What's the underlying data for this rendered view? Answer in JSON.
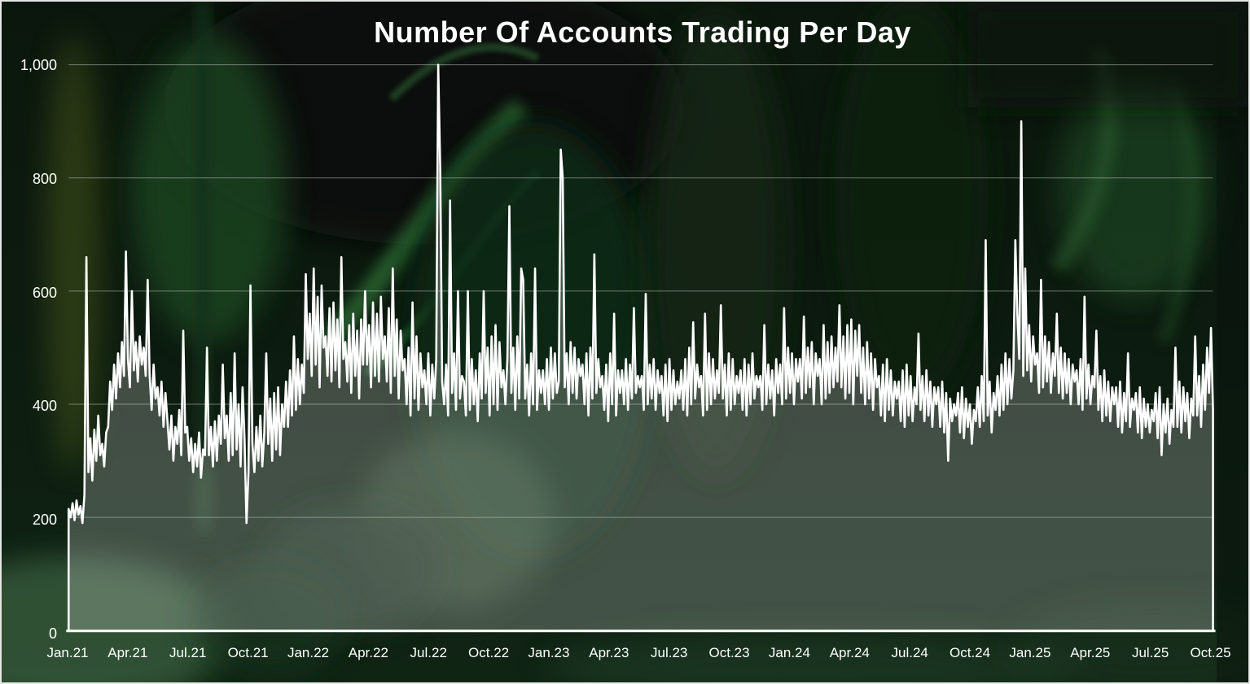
{
  "colors": {
    "background_base": "#0b170d",
    "line": "#ffffff",
    "area_fill": "#ffffff",
    "area_fill_opacity": 0.22,
    "gridline": "#c9cfc9",
    "gridline_opacity": 0.5,
    "axis_line": "#ffffff",
    "label_text": "#ffffff",
    "outer_border": "#e4e8e4"
  },
  "chart_data": {
    "type": "area",
    "title": "Number Of Accounts Trading Per Day",
    "xlabel": "",
    "ylabel": "",
    "legend": "none",
    "grid": "horizontal",
    "ylim": [
      0,
      1000
    ],
    "y_ticks": [
      0,
      200,
      400,
      600,
      800,
      1000
    ],
    "y_tick_labels": [
      "0",
      "200",
      "400",
      "600",
      "800",
      "1,000"
    ],
    "x_tick_labels": [
      "Jan.21",
      "Apr.21",
      "Jul.21",
      "Oct.21",
      "Jan.22",
      "Apr.22",
      "Jul.22",
      "Oct.22",
      "Jan.23",
      "Apr.23",
      "Jul.23",
      "Oct.23",
      "Jan.24",
      "Apr.24",
      "Jul.24",
      "Oct.24",
      "Jan.25",
      "Apr.25",
      "Jul.25",
      "Oct.25"
    ],
    "series_name": "accounts-trading-per-day",
    "sampling": "approx. every 3 days, Jan 2021 - Oct 2025",
    "values": [
      215,
      200,
      225,
      195,
      230,
      205,
      220,
      190,
      240,
      660,
      280,
      340,
      265,
      355,
      300,
      380,
      310,
      330,
      290,
      350,
      360,
      440,
      390,
      470,
      410,
      490,
      430,
      510,
      450,
      670,
      480,
      430,
      600,
      460,
      510,
      440,
      520,
      470,
      500,
      450,
      620,
      450,
      390,
      470,
      410,
      430,
      380,
      440,
      360,
      420,
      370,
      320,
      380,
      300,
      360,
      330,
      390,
      310,
      530,
      350,
      360,
      300,
      340,
      280,
      330,
      290,
      350,
      270,
      320,
      310,
      500,
      310,
      360,
      290,
      370,
      300,
      380,
      330,
      470,
      340,
      380,
      300,
      420,
      310,
      490,
      320,
      400,
      290,
      430,
      340,
      190,
      280,
      610,
      330,
      280,
      360,
      300,
      380,
      290,
      350,
      490,
      330,
      410,
      300,
      420,
      320,
      430,
      310,
      400,
      360,
      440,
      360,
      460,
      380,
      520,
      390,
      480,
      400,
      470,
      420,
      630,
      480,
      560,
      450,
      640,
      470,
      590,
      430,
      610,
      500,
      520,
      450,
      570,
      440,
      580,
      460,
      550,
      430,
      660,
      480,
      510,
      440,
      540,
      420,
      560,
      450,
      530,
      410,
      550,
      470,
      600,
      470,
      540,
      430,
      580,
      450,
      560,
      440,
      590,
      480,
      520,
      440,
      570,
      420,
      640,
      450,
      550,
      410,
      530,
      460,
      480,
      400,
      500,
      380,
      580,
      410,
      520,
      390,
      490,
      430,
      460,
      400,
      490,
      380,
      470,
      410,
      480,
      1000,
      820,
      440,
      400,
      470,
      380,
      760,
      420,
      490,
      390,
      600,
      410,
      450,
      440,
      380,
      600,
      390,
      480,
      400,
      460,
      370,
      490,
      410,
      600,
      420,
      500,
      380,
      520,
      400,
      540,
      390,
      510,
      430,
      460,
      400,
      480,
      750,
      420,
      500,
      390,
      520,
      410,
      640,
      620,
      410,
      470,
      380,
      490,
      400,
      640,
      390,
      460,
      420,
      460,
      400,
      480,
      390,
      500,
      410,
      490,
      420,
      440,
      850,
      800,
      430,
      490,
      400,
      510,
      420,
      500,
      410,
      480,
      450,
      470,
      400,
      490,
      380,
      500,
      410,
      665,
      420,
      480,
      430,
      450,
      390,
      470,
      370,
      490,
      400,
      560,
      380,
      460,
      420,
      460,
      400,
      480,
      390,
      470,
      410,
      570,
      420,
      450,
      430,
      450,
      390,
      595,
      400,
      470,
      410,
      480,
      390,
      460,
      420,
      450,
      380,
      470,
      370,
      480,
      390,
      460,
      400,
      440,
      410,
      460,
      390,
      480,
      380,
      500,
      400,
      545,
      410,
      470,
      430,
      450,
      380,
      560,
      390,
      490,
      400,
      480,
      410,
      460,
      420,
      575,
      410,
      470,
      380,
      490,
      390,
      480,
      400,
      450,
      420,
      460,
      390,
      480,
      380,
      470,
      400,
      490,
      410,
      450,
      430,
      450,
      390,
      540,
      400,
      470,
      410,
      460,
      380,
      480,
      420,
      470,
      400,
      570,
      410,
      500,
      420,
      490,
      400,
      480,
      440,
      480,
      410,
      555,
      420,
      500,
      430,
      510,
      400,
      490,
      450,
      480,
      400,
      540,
      410,
      510,
      420,
      520,
      430,
      500,
      440,
      575,
      430,
      520,
      410,
      540,
      420,
      550,
      400,
      530,
      450,
      540,
      420,
      500,
      400,
      510,
      410,
      490,
      390,
      480,
      430,
      450,
      380,
      470,
      370,
      480,
      390,
      460,
      380,
      440,
      410,
      440,
      370,
      460,
      360,
      470,
      380,
      450,
      370,
      430,
      400,
      525,
      390,
      450,
      370,
      460,
      380,
      440,
      360,
      430,
      400,
      430,
      360,
      440,
      350,
      420,
      300,
      410,
      370,
      400,
      380,
      420,
      350,
      430,
      340,
      410,
      360,
      400,
      330,
      390,
      370,
      430,
      360,
      450,
      370,
      690,
      380,
      440,
      350,
      420,
      390,
      450,
      380,
      470,
      390,
      490,
      400,
      480,
      410,
      460,
      690,
      560,
      480,
      900,
      450,
      640,
      460,
      540,
      440,
      520,
      470,
      490,
      420,
      620,
      430,
      520,
      440,
      510,
      420,
      490,
      450,
      560,
      420,
      500,
      410,
      490,
      420,
      480,
      400,
      470,
      440,
      460,
      400,
      480,
      390,
      590,
      410,
      470,
      400,
      450,
      430,
      530,
      390,
      450,
      370,
      460,
      380,
      440,
      370,
      430,
      400,
      430,
      360,
      440,
      350,
      420,
      370,
      490,
      360,
      410,
      390,
      420,
      350,
      430,
      340,
      410,
      360,
      400,
      350,
      390,
      370,
      420,
      340,
      430,
      310,
      400,
      350,
      410,
      330,
      390,
      360,
      500,
      360,
      440,
      350,
      430,
      370,
      420,
      340,
      410,
      380,
      520,
      380,
      450,
      360,
      470,
      390,
      500,
      420,
      535,
      390
    ]
  }
}
